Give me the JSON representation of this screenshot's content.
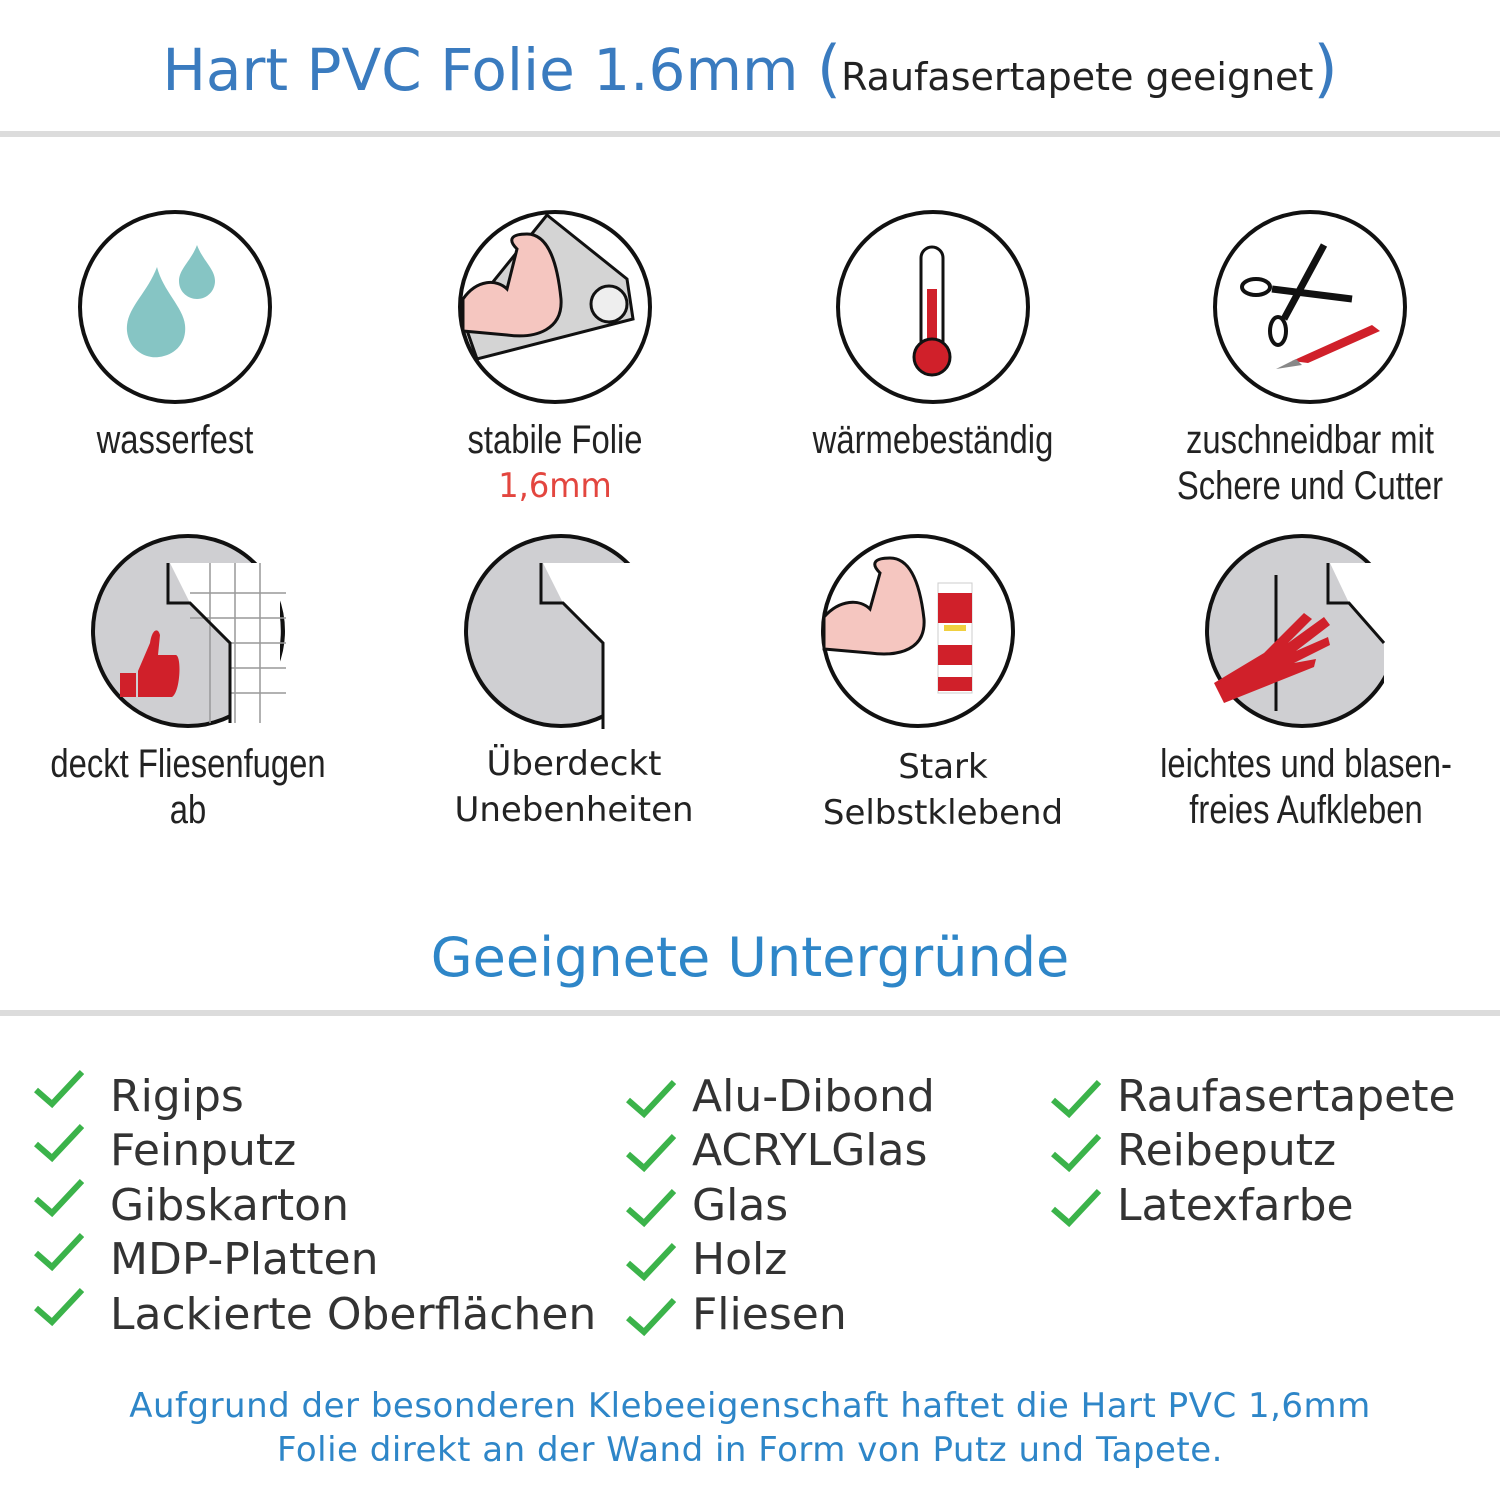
{
  "header": {
    "title": "Hart PVC Folie 1.6mm",
    "subtitle": "Raufasertapete geeignet",
    "open_paren": "(",
    "close_paren": ")"
  },
  "features": [
    {
      "icon": "water-drops-icon",
      "line1": "wasserfest",
      "line2": ""
    },
    {
      "icon": "strong-arm-foil-icon",
      "line1": "stabile Folie",
      "highlight": "1,6mm"
    },
    {
      "icon": "thermometer-icon",
      "line1": "wärmebeständig",
      "line2": ""
    },
    {
      "icon": "scissors-cutter-icon",
      "line1": "zuschneidbar mit",
      "line2": "Schere und Cutter"
    },
    {
      "icon": "thumbs-up-tiles-icon",
      "line1": "deckt Fliesenfugen ab",
      "line2": ""
    },
    {
      "icon": "foil-corner-icon",
      "line1": "Überdeckt",
      "line2": "Unebenheiten"
    },
    {
      "icon": "arm-glue-icon",
      "line1": "Stark",
      "line2": "Selbstklebend"
    },
    {
      "icon": "hand-smoothing-icon",
      "line1": "leichtes und blasen-",
      "line2": "freies Aufkleben"
    }
  ],
  "section_title": "Geeignete Untergründe",
  "surfaces": {
    "col1": [
      "Rigips",
      "Feinputz",
      "Gibskarton",
      "MDP-Platten",
      "Lackierte Oberflächen"
    ],
    "col2": [
      "Alu-Dibond",
      "ACRYLGlas",
      "Glas",
      "Holz",
      "Fliesen"
    ],
    "col3": [
      "Raufasertapete",
      "Reibeputz",
      "Latexfarbe"
    ]
  },
  "footer": {
    "line1": "Aufgrund der besonderen Klebeeigenschaft haftet die Hart PVC 1,6mm",
    "line2": "Folie direkt an der Wand in Form von Putz und Tapete."
  },
  "colors": {
    "title_blue": "#3a7bbf",
    "section_blue": "#2e86c8",
    "check_green": "#3bb34a",
    "highlight_red": "#e3463f",
    "accent_red": "#d0202a",
    "drop_teal": "#86c5c4"
  }
}
